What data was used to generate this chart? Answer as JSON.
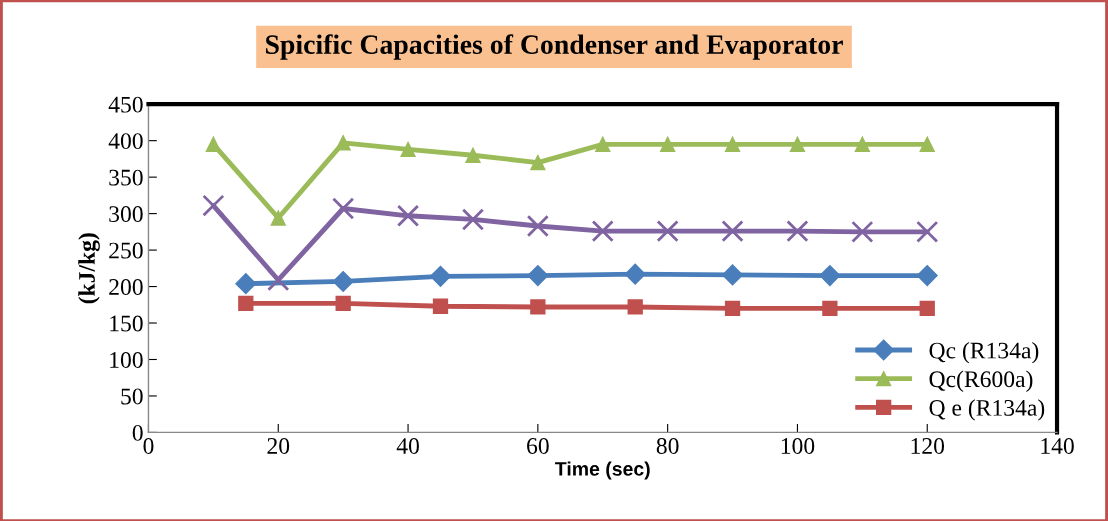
{
  "chart_data": {
    "type": "line",
    "title": "Spicific Capacities of Condenser and Evaporator",
    "xlabel": "Time (sec)",
    "ylabel": "(kJ/kg)",
    "xlim": [
      0,
      140
    ],
    "xticks": [
      0,
      20,
      40,
      60,
      80,
      100,
      120,
      140
    ],
    "ylim": [
      0,
      450
    ],
    "yticks": [
      0,
      50,
      100,
      150,
      200,
      250,
      300,
      350,
      400,
      450
    ],
    "grid": false,
    "legend": "bottom right",
    "series": [
      {
        "name": "Qc (R134a)",
        "color": "#4a7ebb",
        "marker": "diamond",
        "x": [
          15,
          30,
          45,
          60,
          75,
          90,
          105,
          120
        ],
        "values": [
          204,
          207,
          214,
          215,
          217,
          216,
          215,
          215
        ]
      },
      {
        "name": "Qc(R600a)",
        "color": "#9bbb59",
        "marker": "triangle",
        "x": [
          10,
          20,
          30,
          40,
          50,
          60,
          70,
          80,
          90,
          100,
          110,
          120
        ],
        "values": [
          395,
          294,
          397,
          388,
          380,
          370,
          395,
          395,
          395,
          395,
          395,
          395
        ]
      },
      {
        "name": "Q e (R134a)",
        "color": "#c0504d",
        "marker": "square",
        "x": [
          15,
          30,
          45,
          60,
          75,
          90,
          105,
          120
        ],
        "values": [
          177,
          177,
          173,
          172,
          172,
          170,
          170,
          170
        ]
      },
      {
        "color": "#8064a2",
        "marker": "cross",
        "x": [
          10,
          20,
          30,
          40,
          50,
          60,
          70,
          80,
          90,
          100,
          110,
          120
        ],
        "values": [
          311,
          209,
          307,
          297,
          292,
          283,
          276,
          276,
          276,
          276,
          275,
          275
        ]
      }
    ]
  }
}
